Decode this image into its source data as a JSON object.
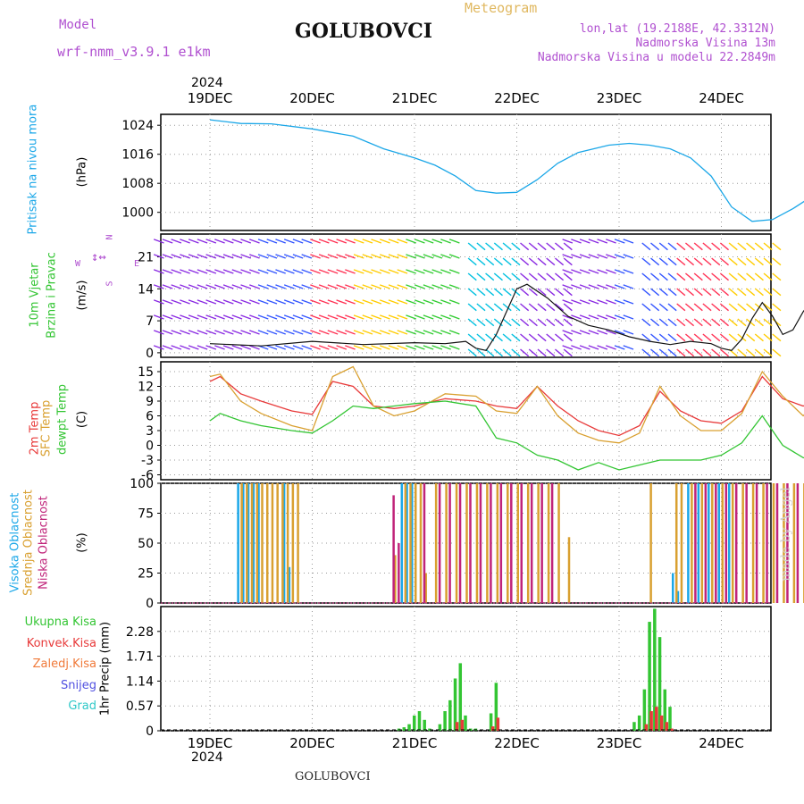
{
  "header": {
    "model_label": "Model",
    "model_name": "wrf-nmm_v3.9.1 e1km",
    "location_title": "GOLUBOVCI",
    "meteogram_label": "Meteogram",
    "lonlat": "lon,lat (19.2188E, 42.3312N)",
    "altitude": "Nadmorska Visina 13m",
    "model_altitude": "Nadmorska Visina u modelu 22.2849m"
  },
  "footer": {
    "location": "GOLUBOVCI",
    "watermark": "made by Angel"
  },
  "colors": {
    "pressure": "#1ba7e8",
    "temp2m": "#e83a3a",
    "sfc": "#d9a030",
    "dew": "#33c533",
    "high_cloud": "#1ba7e8",
    "mid_cloud": "#d9a030",
    "low_cloud": "#c0247a",
    "precip_total": "#33c533",
    "precip_conv": "#e83a3a"
  },
  "time_axis": {
    "year_label": "2024",
    "days": [
      "19DEC",
      "20DEC",
      "21DEC",
      "22DEC",
      "23DEC",
      "24DEC"
    ]
  },
  "panels": {
    "pressure": {
      "label_main": "Pritisak na nivou mora",
      "unit": "(hPa)",
      "ticks": [
        "1024",
        "1016",
        "1008",
        "1000"
      ]
    },
    "wind": {
      "label_1": "10m Vjetar",
      "label_2": "Brzina i Pravac",
      "unit": "(m/s)",
      "ticks": [
        "21",
        "14",
        "7",
        "0"
      ],
      "compass_w": "W",
      "compass_e": "E",
      "compass_n": "N",
      "compass_s": "S"
    },
    "temp": {
      "label_1": "2m Temp",
      "label_2": "SFC Temp",
      "label_3": "dewpt Temp",
      "unit": "(C)",
      "ticks": [
        "15",
        "12",
        "9",
        "6",
        "3",
        "0",
        "-3",
        "-6"
      ]
    },
    "cloud": {
      "label_1": "Visoka Oblacnost",
      "label_2": "Srednja Oblacnost",
      "label_3": "Niska Oblacnost",
      "unit": "(%)",
      "ticks": [
        "100",
        "75",
        "50",
        "25",
        "0"
      ]
    },
    "precip": {
      "legend": [
        "Ukupna Kisa",
        "Konvek.Kisa",
        "Zaledj.Kisa",
        "Snijeg",
        "Grad"
      ],
      "unit_label": "1hr Precip (mm)",
      "ticks": [
        "2.28",
        "1.71",
        "1.14",
        "0.57",
        "0"
      ]
    }
  },
  "chart_data": [
    {
      "type": "line",
      "name": "pressure",
      "ylabel": "(hPa)",
      "ylim": [
        995,
        1027
      ],
      "x_days": [
        0.0,
        0.3,
        0.6,
        1.0,
        1.4,
        1.7,
        2.0,
        2.2,
        2.4,
        2.6,
        2.8,
        3.0,
        3.2,
        3.4,
        3.6,
        3.9,
        4.1,
        4.3,
        4.5,
        4.7,
        4.9,
        5.1,
        5.3,
        5.5,
        5.7,
        6.0
      ],
      "values": [
        1025.5,
        1024.5,
        1024.4,
        1023.0,
        1021.0,
        1017.5,
        1015.0,
        1013.0,
        1010.0,
        1006.0,
        1005.3,
        1005.5,
        1009.0,
        1013.5,
        1016.5,
        1018.5,
        1019.0,
        1018.5,
        1017.5,
        1015.0,
        1010.0,
        1001.5,
        997.5,
        998.0,
        1001.0,
        1006.5
      ]
    },
    {
      "type": "line",
      "name": "wind_speed",
      "ylabel": "(m/s)",
      "ylim": [
        -1,
        26
      ],
      "x_days": [
        0.0,
        0.5,
        1.0,
        1.5,
        2.0,
        2.3,
        2.5,
        2.6,
        2.7,
        2.8,
        2.9,
        3.0,
        3.1,
        3.3,
        3.5,
        3.7,
        3.9,
        4.1,
        4.3,
        4.5,
        4.7,
        4.9,
        5.0,
        5.1,
        5.2,
        5.3,
        5.4,
        5.5,
        5.6,
        5.7,
        5.8,
        5.9,
        6.0
      ],
      "values": [
        2.0,
        1.5,
        2.5,
        1.8,
        2.2,
        2.0,
        2.5,
        1.0,
        0.5,
        4.0,
        9.0,
        14.0,
        15.0,
        12.0,
        8.0,
        6.0,
        5.0,
        3.5,
        2.5,
        1.8,
        2.5,
        2.0,
        1.0,
        0.5,
        3.0,
        7.5,
        11.0,
        8.0,
        4.0,
        5.0,
        9.0,
        12.0,
        13.5
      ]
    },
    {
      "type": "line",
      "ylabel": "(C)",
      "ylim": [
        -7,
        17
      ],
      "x_days": [
        0.0,
        0.1,
        0.3,
        0.5,
        0.8,
        1.0,
        1.2,
        1.4,
        1.6,
        1.8,
        2.0,
        2.3,
        2.6,
        2.8,
        3.0,
        3.2,
        3.4,
        3.6,
        3.8,
        4.0,
        4.2,
        4.4,
        4.6,
        4.8,
        5.0,
        5.2,
        5.4,
        5.6,
        5.8,
        6.0
      ],
      "series": [
        {
          "name": "2m Temp",
          "values": [
            13.0,
            14.0,
            10.5,
            9.0,
            7.0,
            6.3,
            13.0,
            12.0,
            8.0,
            7.5,
            8.0,
            9.5,
            9.0,
            8.0,
            7.5,
            12.0,
            8.0,
            5.0,
            3.0,
            2.0,
            4.0,
            11.0,
            7.0,
            5.0,
            4.5,
            7.0,
            14.0,
            9.5,
            8.0,
            9.5
          ]
        },
        {
          "name": "SFC Temp",
          "values": [
            14.0,
            14.5,
            9.0,
            6.5,
            4.0,
            3.0,
            14.0,
            16.0,
            8.0,
            6.0,
            7.0,
            10.5,
            10.0,
            7.0,
            6.5,
            12.0,
            6.0,
            2.5,
            1.0,
            0.5,
            2.5,
            12.0,
            6.0,
            3.0,
            3.0,
            6.5,
            15.0,
            10.0,
            6.0,
            10.5
          ]
        },
        {
          "name": "dewpt Temp",
          "values": [
            5.0,
            6.5,
            5.0,
            4.0,
            3.0,
            2.5,
            5.0,
            8.0,
            7.5,
            8.0,
            8.5,
            9.0,
            8.0,
            1.5,
            0.5,
            -2.0,
            -3.0,
            -5.0,
            -3.5,
            -5.0,
            -4.0,
            -3.0,
            -3.0,
            -3.0,
            -2.0,
            0.5,
            6.0,
            0.0,
            -2.5,
            -3.5
          ]
        }
      ]
    },
    {
      "type": "bar",
      "ylabel": "(%)",
      "ylim": [
        0,
        100
      ],
      "x_days": [
        0.3,
        0.35,
        0.4,
        0.45,
        0.5,
        0.55,
        0.6,
        0.65,
        0.7,
        0.75,
        0.8,
        0.85,
        1.75,
        1.8,
        1.9,
        1.95,
        2.0,
        2.05,
        2.1,
        2.2,
        2.3,
        2.4,
        2.5,
        2.6,
        2.7,
        2.8,
        2.9,
        3.0,
        3.1,
        3.2,
        3.3,
        3.4,
        3.5,
        4.3,
        4.55,
        4.6,
        4.7,
        4.8,
        4.9,
        5.0,
        5.1,
        5.2,
        5.3,
        5.4,
        5.5,
        5.6,
        5.7,
        5.8,
        5.9,
        6.0
      ],
      "series": [
        {
          "name": "Visoka Oblacnost",
          "values": [
            100,
            100,
            100,
            100,
            100,
            0,
            0,
            0,
            0,
            100,
            30,
            0,
            0,
            0,
            100,
            100,
            100,
            0,
            0,
            0,
            0,
            0,
            0,
            0,
            0,
            0,
            0,
            0,
            0,
            0,
            0,
            0,
            0,
            0,
            25,
            10,
            100,
            100,
            100,
            100,
            100,
            0,
            0,
            0,
            0,
            0,
            0,
            0,
            0,
            0
          ]
        },
        {
          "name": "Srednja Oblacnost",
          "values": [
            100,
            100,
            100,
            100,
            100,
            100,
            100,
            100,
            100,
            100,
            100,
            100,
            0,
            40,
            100,
            100,
            100,
            100,
            25,
            100,
            100,
            100,
            100,
            100,
            100,
            100,
            100,
            100,
            100,
            100,
            100,
            100,
            55,
            100,
            100,
            100,
            100,
            100,
            100,
            100,
            100,
            100,
            100,
            100,
            100,
            100,
            100,
            100,
            100,
            100
          ]
        },
        {
          "name": "Niska Oblacnost",
          "values": [
            0,
            0,
            0,
            0,
            0,
            0,
            0,
            0,
            0,
            0,
            0,
            0,
            90,
            50,
            0,
            0,
            0,
            100,
            0,
            100,
            100,
            100,
            100,
            100,
            100,
            100,
            100,
            100,
            100,
            100,
            100,
            0,
            0,
            0,
            0,
            0,
            100,
            100,
            100,
            100,
            100,
            100,
            100,
            100,
            100,
            100,
            100,
            100,
            100,
            100
          ]
        }
      ]
    },
    {
      "type": "bar",
      "ylabel": "1hr Precip (mm)",
      "ylim": [
        0,
        2.85
      ],
      "x_days": [
        1.85,
        1.9,
        1.95,
        2.0,
        2.05,
        2.1,
        2.15,
        2.25,
        2.3,
        2.35,
        2.4,
        2.45,
        2.5,
        2.55,
        2.6,
        2.75,
        2.8,
        4.15,
        4.2,
        4.25,
        4.3,
        4.35,
        4.4,
        4.45,
        4.5
      ],
      "series": [
        {
          "name": "Ukupna Kisa",
          "values": [
            0.05,
            0.08,
            0.15,
            0.35,
            0.45,
            0.25,
            0.05,
            0.15,
            0.45,
            0.7,
            1.2,
            1.55,
            0.35,
            0.05,
            0.05,
            0.4,
            1.1,
            0.2,
            0.35,
            0.95,
            2.5,
            2.8,
            2.15,
            0.95,
            0.55
          ]
        },
        {
          "name": "Konvek.Kisa",
          "values": [
            0,
            0,
            0,
            0,
            0,
            0,
            0,
            0,
            0,
            0,
            0.2,
            0.25,
            0,
            0,
            0,
            0.1,
            0.3,
            0,
            0,
            0.15,
            0.45,
            0.55,
            0.35,
            0.2,
            0.05
          ]
        }
      ]
    }
  ]
}
